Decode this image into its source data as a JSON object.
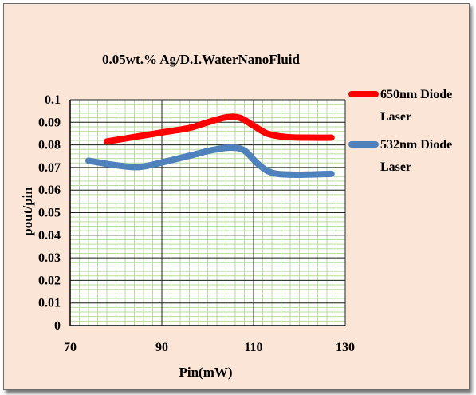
{
  "chart_data": {
    "type": "line",
    "title": "0.05wt.% Ag/D.I.WaterNanoFluid",
    "xlabel": "Pin(mW)",
    "ylabel": "pout/pin",
    "xlim": [
      70,
      130
    ],
    "ylim": [
      0,
      0.1
    ],
    "x_ticks": [
      70,
      90,
      110,
      130
    ],
    "y_ticks": [
      0,
      0.01,
      0.02,
      0.03,
      0.04,
      0.05,
      0.06,
      0.07,
      0.08,
      0.09,
      0.1
    ],
    "x_tick_labels": [
      "70",
      "90",
      "110",
      "130"
    ],
    "y_tick_labels": [
      "0",
      "0.01",
      "0.02",
      "0.03",
      "0.04",
      "0.05",
      "0.06",
      "0.07",
      "0.08",
      "0.09",
      "0.1"
    ],
    "grid": true,
    "legend_position": "right",
    "series": [
      {
        "name": "650nm Diode Laser",
        "legend_lines": [
          "650nm Diode",
          "Laser"
        ],
        "color": "#ff0000",
        "points": [
          [
            78,
            0.0815
          ],
          [
            84,
            0.0835
          ],
          [
            90,
            0.0855
          ],
          [
            96,
            0.0875
          ],
          [
            100,
            0.09
          ],
          [
            104,
            0.0922
          ],
          [
            107,
            0.092
          ],
          [
            110,
            0.0885
          ],
          [
            113,
            0.085
          ],
          [
            117,
            0.0835
          ],
          [
            122,
            0.0832
          ],
          [
            127,
            0.0832
          ]
        ]
      },
      {
        "name": "532nm Diode Laser",
        "legend_lines": [
          "532nm Diode",
          "Laser"
        ],
        "color": "#4f81bd",
        "points": [
          [
            74,
            0.073
          ],
          [
            80,
            0.071
          ],
          [
            85,
            0.0702
          ],
          [
            90,
            0.0722
          ],
          [
            96,
            0.0752
          ],
          [
            101,
            0.0777
          ],
          [
            105,
            0.0788
          ],
          [
            108,
            0.0775
          ],
          [
            111,
            0.0715
          ],
          [
            114,
            0.0677
          ],
          [
            119,
            0.0668
          ],
          [
            127,
            0.0672
          ]
        ]
      }
    ]
  }
}
